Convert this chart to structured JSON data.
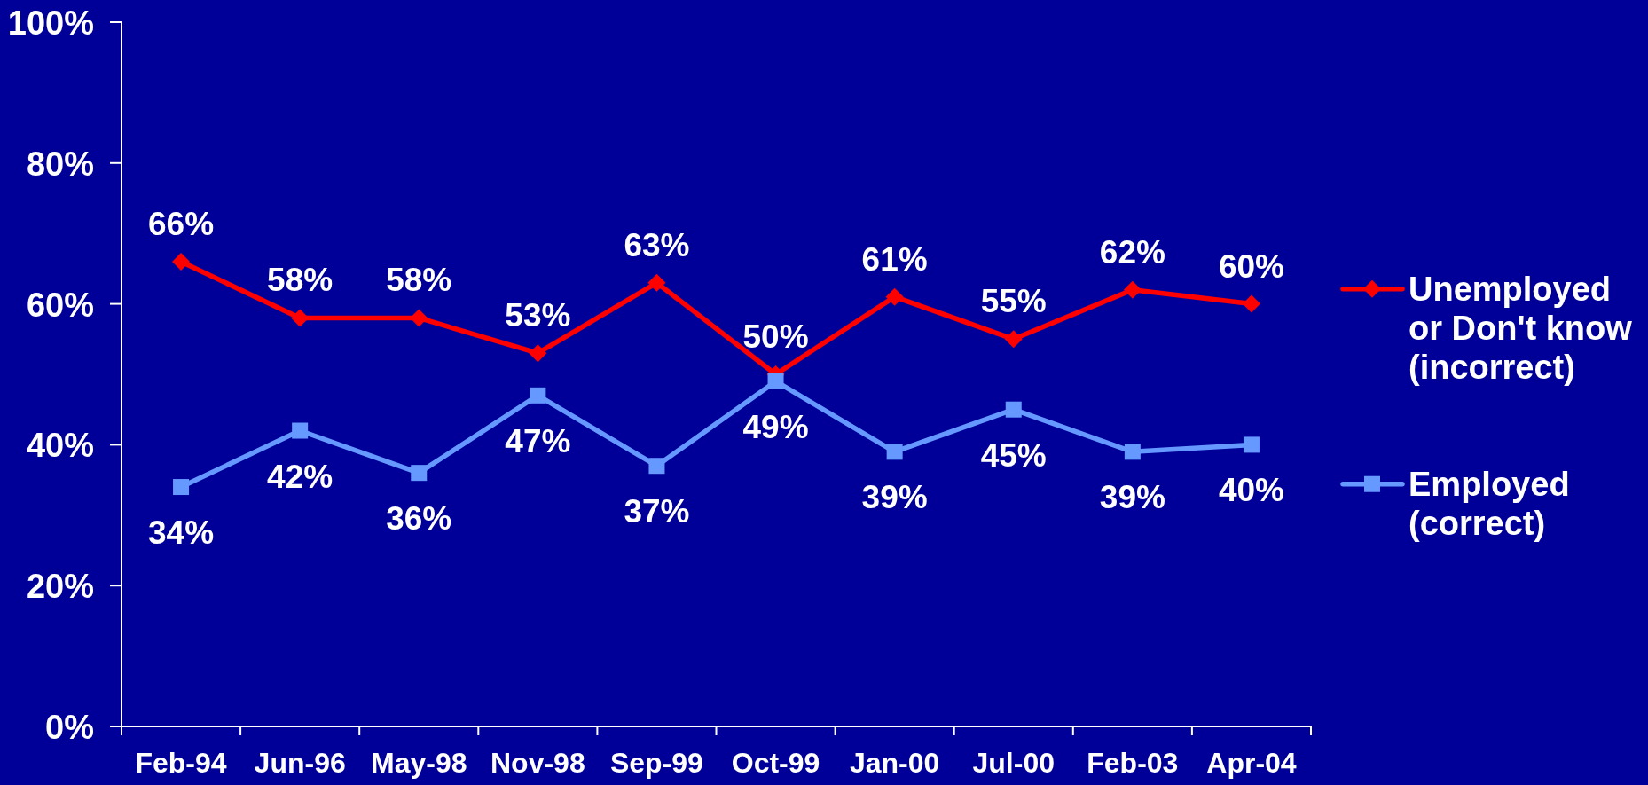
{
  "chart_data": {
    "type": "line",
    "categories": [
      "Feb-94",
      "Jun-96",
      "May-98",
      "Nov-98",
      "Sep-99",
      "Oct-99",
      "Jan-00",
      "Jul-00",
      "Feb-03",
      "Apr-04"
    ],
    "series": [
      {
        "name": "Unemployed or Don't know (incorrect)",
        "color": "#ff0000",
        "marker": "diamond",
        "values": [
          66,
          58,
          58,
          53,
          63,
          50,
          61,
          55,
          62,
          60
        ],
        "value_labels": [
          "66%",
          "58%",
          "58%",
          "53%",
          "63%",
          "50%",
          "61%",
          "55%",
          "62%",
          "60%"
        ]
      },
      {
        "name": "Employed (correct)",
        "color": "#6699ff",
        "marker": "square",
        "values": [
          34,
          42,
          36,
          47,
          37,
          49,
          39,
          45,
          39,
          40
        ],
        "value_labels": [
          "34%",
          "42%",
          "36%",
          "47%",
          "37%",
          "49%",
          "39%",
          "45%",
          "39%",
          "40%"
        ]
      }
    ],
    "ylim": [
      0,
      100
    ],
    "yticks": [
      {
        "value": 0,
        "label": "0%"
      },
      {
        "value": 20,
        "label": "20%"
      },
      {
        "value": 40,
        "label": "40%"
      },
      {
        "value": 60,
        "label": "60%"
      },
      {
        "value": 80,
        "label": "80%"
      },
      {
        "value": 100,
        "label": "100%"
      }
    ],
    "legend": "right",
    "line_style": "solid"
  }
}
